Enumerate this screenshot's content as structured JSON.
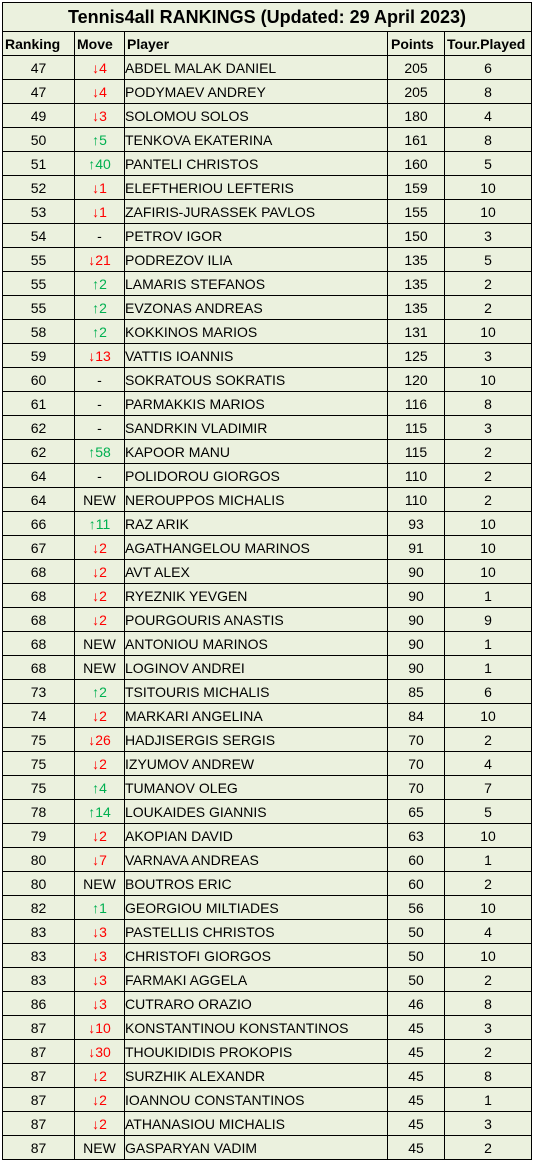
{
  "title": "Tennis4all RANKINGS (Updated: 29 April 2023)",
  "headers": {
    "ranking": "Ranking",
    "move": "Move",
    "player": "Player",
    "points": "Points",
    "tours": "Tour.Played"
  },
  "colors": {
    "down": "#ff0000",
    "up": "#00b050",
    "background": "#ebf1de"
  },
  "rows": [
    {
      "rank": "47",
      "dir": "down",
      "move": "↓4",
      "player": "ABDEL MALAK DANIEL",
      "points": "205",
      "tours": "6"
    },
    {
      "rank": "47",
      "dir": "down",
      "move": "↓4",
      "player": "PODYMAEV ANDREY",
      "points": "205",
      "tours": "8"
    },
    {
      "rank": "49",
      "dir": "down",
      "move": "↓3",
      "player": "SOLOMOU SOLOS",
      "points": "180",
      "tours": "4"
    },
    {
      "rank": "50",
      "dir": "up",
      "move": "↑5",
      "player": "TENKOVA EKATERINA",
      "points": "161",
      "tours": "8"
    },
    {
      "rank": "51",
      "dir": "up",
      "move": "↑40",
      "player": "PANTELI CHRISTOS",
      "points": "160",
      "tours": "5"
    },
    {
      "rank": "52",
      "dir": "down",
      "move": "↓1",
      "player": "ELEFTHERIOU LEFTERIS",
      "points": "159",
      "tours": "10"
    },
    {
      "rank": "53",
      "dir": "down",
      "move": "↓1",
      "player": "ZAFIRIS-JURASSEK PAVLOS",
      "points": "155",
      "tours": "10"
    },
    {
      "rank": "54",
      "dir": "same",
      "move": "-",
      "player": "PETROV IGOR",
      "points": "150",
      "tours": "3"
    },
    {
      "rank": "55",
      "dir": "down",
      "move": "↓21",
      "player": "PODREZOV ILIA",
      "points": "135",
      "tours": "5"
    },
    {
      "rank": "55",
      "dir": "up",
      "move": "↑2",
      "player": "LAMARIS STEFANOS",
      "points": "135",
      "tours": "2"
    },
    {
      "rank": "55",
      "dir": "up",
      "move": "↑2",
      "player": "EVZONAS ANDREAS",
      "points": "135",
      "tours": "2"
    },
    {
      "rank": "58",
      "dir": "up",
      "move": "↑2",
      "player": "KOKKINOS MARIOS",
      "points": "131",
      "tours": "10"
    },
    {
      "rank": "59",
      "dir": "down",
      "move": "↓13",
      "player": "VATTIS IOANNIS",
      "points": "125",
      "tours": "3"
    },
    {
      "rank": "60",
      "dir": "same",
      "move": "-",
      "player": "SOKRATOUS SOKRATIS",
      "points": "120",
      "tours": "10"
    },
    {
      "rank": "61",
      "dir": "same",
      "move": "-",
      "player": "PARMAKKIS MARIOS",
      "points": "116",
      "tours": "8"
    },
    {
      "rank": "62",
      "dir": "same",
      "move": "-",
      "player": "SANDRKIN VLADIMIR",
      "points": "115",
      "tours": "3"
    },
    {
      "rank": "62",
      "dir": "up",
      "move": "↑58",
      "player": "KAPOOR MANU",
      "points": "115",
      "tours": "2"
    },
    {
      "rank": "64",
      "dir": "same",
      "move": "-",
      "player": "POLIDOROU GIORGOS",
      "points": "110",
      "tours": "2"
    },
    {
      "rank": "64",
      "dir": "new",
      "move": "NEW",
      "player": "NEROUPPOS MICHALIS",
      "points": "110",
      "tours": "2"
    },
    {
      "rank": "66",
      "dir": "up",
      "move": "↑11",
      "player": "RAZ ARIK",
      "points": "93",
      "tours": "10"
    },
    {
      "rank": "67",
      "dir": "down",
      "move": "↓2",
      "player": "AGATHANGELOU MARINOS",
      "points": "91",
      "tours": "10"
    },
    {
      "rank": "68",
      "dir": "down",
      "move": "↓2",
      "player": "AVT ALEX",
      "points": "90",
      "tours": "10"
    },
    {
      "rank": "68",
      "dir": "down",
      "move": "↓2",
      "player": "RYEZNIK YEVGEN",
      "points": "90",
      "tours": "1"
    },
    {
      "rank": "68",
      "dir": "down",
      "move": "↓2",
      "player": "POURGOURIS ANASTIS",
      "points": "90",
      "tours": "9"
    },
    {
      "rank": "68",
      "dir": "new",
      "move": "NEW",
      "player": "ANTONIOU MARINOS",
      "points": "90",
      "tours": "1"
    },
    {
      "rank": "68",
      "dir": "new",
      "move": "NEW",
      "player": "LOGINOV ANDREI",
      "points": "90",
      "tours": "1"
    },
    {
      "rank": "73",
      "dir": "up",
      "move": "↑2",
      "player": "TSITOURIS MICHALIS",
      "points": "85",
      "tours": "6"
    },
    {
      "rank": "74",
      "dir": "down",
      "move": "↓2",
      "player": "MARKARI ANGELINA",
      "points": "84",
      "tours": "10"
    },
    {
      "rank": "75",
      "dir": "down",
      "move": "↓26",
      "player": "HADJISERGIS SERGIS",
      "points": "70",
      "tours": "2"
    },
    {
      "rank": "75",
      "dir": "down",
      "move": "↓2",
      "player": "IZYUMOV ANDREW",
      "points": "70",
      "tours": "4"
    },
    {
      "rank": "75",
      "dir": "up",
      "move": "↑4",
      "player": "TUMANOV OLEG",
      "points": "70",
      "tours": "7"
    },
    {
      "rank": "78",
      "dir": "up",
      "move": "↑14",
      "player": "LOUKAIDES GIANNIS",
      "points": "65",
      "tours": "5"
    },
    {
      "rank": "79",
      "dir": "down",
      "move": "↓2",
      "player": "AKOPIAN DAVID",
      "points": "63",
      "tours": "10"
    },
    {
      "rank": "80",
      "dir": "down",
      "move": "↓7",
      "player": "VARNAVA ANDREAS",
      "points": "60",
      "tours": "1"
    },
    {
      "rank": "80",
      "dir": "new",
      "move": "NEW",
      "player": "BOUTROS ERIC",
      "points": "60",
      "tours": "2"
    },
    {
      "rank": "82",
      "dir": "up",
      "move": "↑1",
      "player": "GEORGIOU MILTIADES",
      "points": "56",
      "tours": "10"
    },
    {
      "rank": "83",
      "dir": "down",
      "move": "↓3",
      "player": "PASTELLIS CHRISTOS",
      "points": "50",
      "tours": "4"
    },
    {
      "rank": "83",
      "dir": "down",
      "move": "↓3",
      "player": "CHRISTOFI GIORGOS",
      "points": "50",
      "tours": "10"
    },
    {
      "rank": "83",
      "dir": "down",
      "move": "↓3",
      "player": "FARMAKI AGGELA",
      "points": "50",
      "tours": "2"
    },
    {
      "rank": "86",
      "dir": "down",
      "move": "↓3",
      "player": "CUTRARO ORAZIO",
      "points": "46",
      "tours": "8"
    },
    {
      "rank": "87",
      "dir": "down",
      "move": "↓10",
      "player": "KONSTANTINOU KONSTANTINOS",
      "points": "45",
      "tours": "3"
    },
    {
      "rank": "87",
      "dir": "down",
      "move": "↓30",
      "player": "THOUKIDIDIS PROKOPIS",
      "points": "45",
      "tours": "2"
    },
    {
      "rank": "87",
      "dir": "down",
      "move": "↓2",
      "player": "SURZHIK ALEXANDR",
      "points": "45",
      "tours": "8"
    },
    {
      "rank": "87",
      "dir": "down",
      "move": "↓2",
      "player": "IOANNOU CONSTANTINOS",
      "points": "45",
      "tours": "1"
    },
    {
      "rank": "87",
      "dir": "down",
      "move": "↓2",
      "player": "ATHANASIOU MICHALIS",
      "points": "45",
      "tours": "3"
    },
    {
      "rank": "87",
      "dir": "new",
      "move": "NEW",
      "player": "GASPARYAN VADIM",
      "points": "45",
      "tours": "2"
    }
  ]
}
